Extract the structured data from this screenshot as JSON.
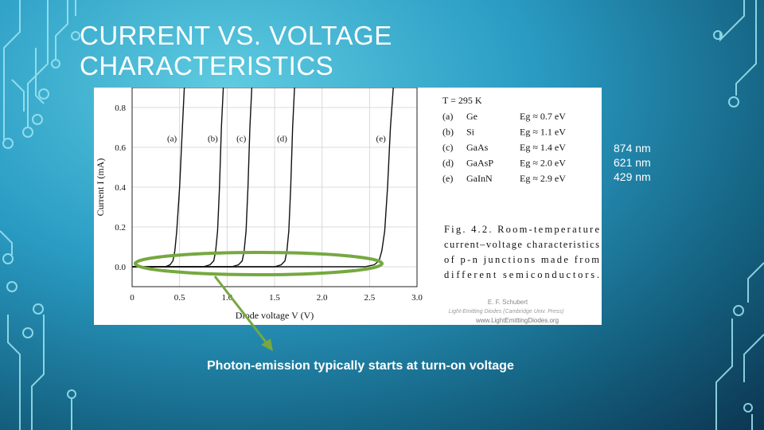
{
  "slide": {
    "title_line1": "CURRENT VS. VOLTAGE",
    "title_line2": "CHARACTERISTICS",
    "wavelengths": [
      "874 nm",
      "621 nm",
      "429 nm"
    ],
    "caption": "Photon-emission typically starts at turn-on voltage"
  },
  "figure": {
    "temperature": "T = 295 K",
    "legend": [
      {
        "id": "(a)",
        "material": "Ge",
        "eg": "Eg ≈ 0.7 eV"
      },
      {
        "id": "(b)",
        "material": "Si",
        "eg": "Eg ≈ 1.1 eV"
      },
      {
        "id": "(c)",
        "material": "GaAs",
        "eg": "Eg ≈ 1.4 eV"
      },
      {
        "id": "(d)",
        "material": "GaAsP",
        "eg": "Eg ≈ 2.0 eV"
      },
      {
        "id": "(e)",
        "material": "GaInN",
        "eg": "Eg ≈ 2.9 eV"
      }
    ],
    "fig_caption": [
      "Fig.   4.2.   Room-temperature",
      "current–voltage  characteristics",
      "of  p-n  junctions  made  from",
      "different semiconductors."
    ],
    "credit_line1": "E. F. Schubert",
    "credit_line2": "Light-Emitting Diodes (Cambridge Univ. Press)",
    "credit_line3": "www.LightEmittingDiodes.org"
  },
  "chart_data": {
    "type": "line",
    "xlabel": "Diode voltage  V  (V)",
    "ylabel": "Current  I  (mA)",
    "xlim": [
      0,
      3.0
    ],
    "ylim": [
      -0.1,
      0.9
    ],
    "xticks": [
      "0",
      "0.5",
      "1.0",
      "1.5",
      "2.0",
      "2.5",
      "3.0"
    ],
    "yticks": [
      "0.0",
      "0.2",
      "0.4",
      "0.6",
      "0.8"
    ],
    "grid": true,
    "series": [
      {
        "name": "(a)",
        "x": [
          0.0,
          0.35,
          0.4,
          0.43,
          0.45,
          0.47,
          0.5,
          0.53,
          0.55
        ],
        "y": [
          0.0,
          0.0,
          0.01,
          0.03,
          0.08,
          0.18,
          0.4,
          0.7,
          0.9
        ]
      },
      {
        "name": "(b)",
        "x": [
          0.0,
          0.75,
          0.82,
          0.86,
          0.88,
          0.9,
          0.92,
          0.94,
          0.96
        ],
        "y": [
          0.0,
          0.0,
          0.01,
          0.03,
          0.08,
          0.18,
          0.4,
          0.7,
          0.9
        ]
      },
      {
        "name": "(c)",
        "x": [
          0.0,
          1.05,
          1.12,
          1.16,
          1.18,
          1.2,
          1.22,
          1.24,
          1.26
        ],
        "y": [
          0.0,
          0.0,
          0.01,
          0.03,
          0.08,
          0.18,
          0.4,
          0.7,
          0.9
        ]
      },
      {
        "name": "(d)",
        "x": [
          0.0,
          1.5,
          1.57,
          1.61,
          1.63,
          1.65,
          1.67,
          1.69,
          1.71
        ],
        "y": [
          0.0,
          0.0,
          0.01,
          0.03,
          0.08,
          0.18,
          0.4,
          0.7,
          0.9
        ]
      },
      {
        "name": "(e)",
        "x": [
          0.0,
          2.45,
          2.55,
          2.6,
          2.63,
          2.66,
          2.69,
          2.72,
          2.75
        ],
        "y": [
          0.0,
          0.0,
          0.01,
          0.03,
          0.08,
          0.18,
          0.4,
          0.7,
          0.9
        ]
      }
    ],
    "annotations": [
      {
        "label": "(a)",
        "x": 0.42,
        "y": 0.63
      },
      {
        "label": "(b)",
        "x": 0.85,
        "y": 0.63
      },
      {
        "label": "(c)",
        "x": 1.15,
        "y": 0.63
      },
      {
        "label": "(d)",
        "x": 1.58,
        "y": 0.63
      },
      {
        "label": "(e)",
        "x": 2.62,
        "y": 0.63
      }
    ]
  },
  "colors": {
    "curve": "#111111",
    "ellipse": "#76a840",
    "arrow": "#76a840",
    "circuit": "#a8ecf6"
  }
}
